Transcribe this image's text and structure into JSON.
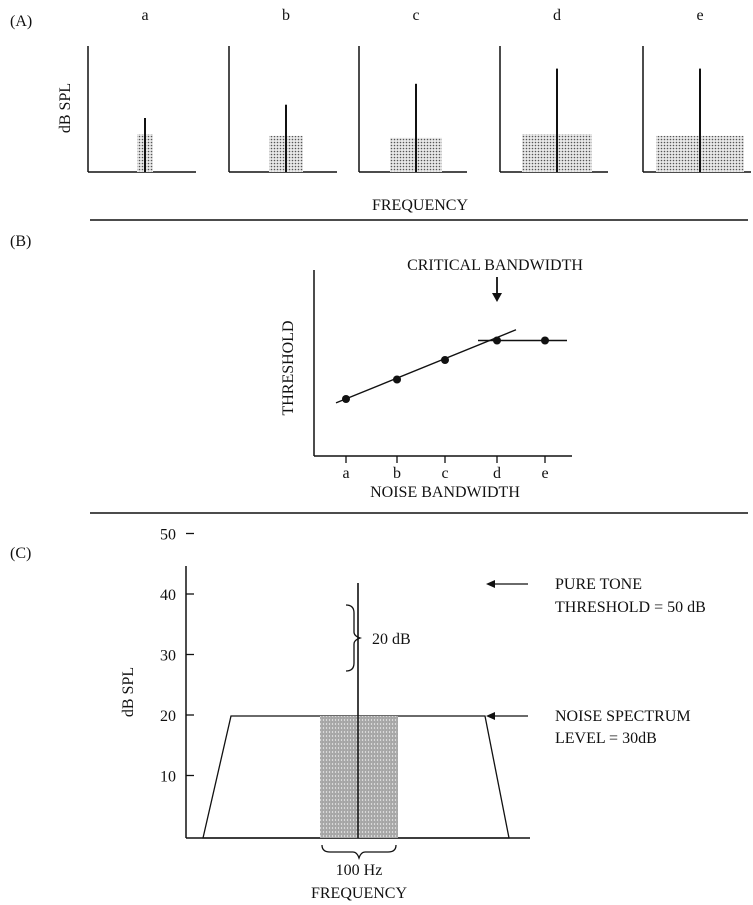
{
  "panel_a": {
    "label": "(A)",
    "ylabel": "dB SPL",
    "xlabel": "FREQUENCY",
    "subplots": [
      {
        "letter": "a",
        "noise_bandwidth": 1,
        "tone_level": 1.0,
        "noise_level": 1.0
      },
      {
        "letter": "b",
        "noise_bandwidth": 2,
        "tone_level": 1.35,
        "noise_level": 0.95
      },
      {
        "letter": "c",
        "noise_bandwidth": 3,
        "tone_level": 1.9,
        "noise_level": 0.9
      },
      {
        "letter": "d",
        "noise_bandwidth": 4,
        "tone_level": 2.3,
        "noise_level": 1.0
      },
      {
        "letter": "e",
        "noise_bandwidth": 5,
        "tone_level": 2.3,
        "noise_level": 0.95
      }
    ]
  },
  "panel_b": {
    "label": "(B)",
    "ylabel": "THRESHOLD",
    "xlabel": "NOISE BANDWIDTH",
    "annotation": "CRITICAL BANDWIDTH",
    "annotation_arrow": "down"
  },
  "panel_c": {
    "label": "(C)",
    "ylabel": "dB SPL",
    "xlabel": "FREQUENCY",
    "y_ticks": [
      "10",
      "20",
      "30",
      "40",
      "50"
    ],
    "tone_label_line1": "PURE TONE",
    "tone_label_line2": "THRESHOLD = 50 dB",
    "noise_label_line1": "NOISE SPECTRUM",
    "noise_label_line2": "LEVEL = 30dB",
    "gap_label": "20 dB",
    "band_label": "100 Hz",
    "tone_level_db": 50,
    "noise_level_db": 30
  },
  "chart_data": [
    {
      "type": "line",
      "xlabel": "NOISE BANDWIDTH",
      "ylabel": "THRESHOLD",
      "categories": [
        "a",
        "b",
        "c",
        "d",
        "e"
      ],
      "series": [
        {
          "values": [
            1.0,
            2.0,
            3.0,
            4.0,
            4.0
          ]
        }
      ],
      "critical_bandwidth_at": "d"
    }
  ]
}
